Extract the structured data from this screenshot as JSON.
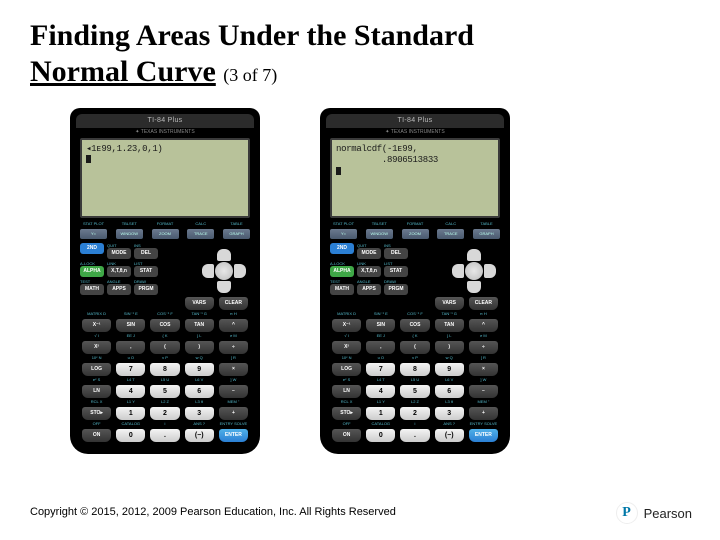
{
  "title_line1": "Finding Areas Under the Standard",
  "title_line2": "Normal Curve",
  "title_sub": "(3 of 7)",
  "calc_model": "TI-84 Plus",
  "calc_brand": "TEXAS INSTRUMENTS",
  "screen_left": "◂1ᴇ99,1.23,0,1)",
  "screen_right_l1": "normalcdf(-1ᴇ99,",
  "screen_right_l2": "         .8906513833",
  "fkeys": [
    "Y=",
    "WINDOW",
    "ZOOM",
    "TRACE",
    "GRAPH"
  ],
  "flabels": [
    "STAT PLOT",
    "TBLSET",
    "FORMAT",
    "CALC",
    "TABLE"
  ],
  "leftgrid": [
    {
      "t": "2ND",
      "c": "b2nd"
    },
    {
      "t": "MODE",
      "c": "bgray"
    },
    {
      "t": "DEL",
      "c": "bgray"
    },
    {
      "t": "ALPHA",
      "c": "balpha"
    },
    {
      "t": "X,T,θ,n",
      "c": "bgray"
    },
    {
      "t": "STAT",
      "c": "bgray"
    },
    {
      "t": "MATH",
      "c": "bgray"
    },
    {
      "t": "APPS",
      "c": "bgray"
    },
    {
      "t": "PRGM",
      "c": "bgray"
    }
  ],
  "row_labels": [
    [
      "TEST A",
      "ANGLE B",
      "DRAW C",
      "DISTR",
      ""
    ],
    [
      "MATRIX D",
      "SIN⁻¹ E",
      "COS⁻¹ F",
      "TAN⁻¹ G",
      "π H"
    ]
  ],
  "rows": [
    [
      {
        "t": "X⁻¹",
        "c": "kb"
      },
      {
        "t": "SIN",
        "c": "kb"
      },
      {
        "t": "COS",
        "c": "kb"
      },
      {
        "t": "TAN",
        "c": "kb"
      },
      {
        "t": "^",
        "c": "kb"
      }
    ],
    [
      {
        "t": "X²",
        "c": "kb"
      },
      {
        "t": ",",
        "c": "kb"
      },
      {
        "t": "(",
        "c": "kb"
      },
      {
        "t": ")",
        "c": "kb"
      },
      {
        "t": "÷",
        "c": "kb"
      }
    ],
    [
      {
        "t": "LOG",
        "c": "kb"
      },
      {
        "t": "7",
        "c": "kw"
      },
      {
        "t": "8",
        "c": "kw"
      },
      {
        "t": "9",
        "c": "kw"
      },
      {
        "t": "×",
        "c": "kb"
      }
    ],
    [
      {
        "t": "LN",
        "c": "kb"
      },
      {
        "t": "4",
        "c": "kw"
      },
      {
        "t": "5",
        "c": "kw"
      },
      {
        "t": "6",
        "c": "kw"
      },
      {
        "t": "−",
        "c": "kb"
      }
    ],
    [
      {
        "t": "STO▸",
        "c": "kb"
      },
      {
        "t": "1",
        "c": "kw"
      },
      {
        "t": "2",
        "c": "kw"
      },
      {
        "t": "3",
        "c": "kw"
      },
      {
        "t": "+",
        "c": "kb"
      }
    ],
    [
      {
        "t": "ON",
        "c": "kb"
      },
      {
        "t": "0",
        "c": "kw"
      },
      {
        "t": ".",
        "c": "kw"
      },
      {
        "t": "(−)",
        "c": "kw"
      },
      {
        "t": "ENTER",
        "c": "ke"
      }
    ]
  ],
  "num_labels": [
    [
      "√ I",
      "EE J",
      "{ K",
      "} L",
      "e M"
    ],
    [
      "10ˣ N",
      "u O",
      "v P",
      "w Q",
      "[ R"
    ],
    [
      "eˣ S",
      "L4 T",
      "L5 U",
      "L6 V",
      "] W"
    ],
    [
      "RCL X",
      "L1 Y",
      "L2 Z",
      "L3 θ",
      "MEM \""
    ],
    [
      "OFF",
      "CATALOG",
      "i",
      "ANS ?",
      "ENTRY SOLVE"
    ]
  ],
  "extra_right": [
    {
      "t": "VARS",
      "c": "bgray"
    },
    {
      "t": "CLEAR",
      "c": "bgray"
    }
  ],
  "copyright": "Copyright © 2015, 2012, 2009 Pearson Education, Inc. All Rights Reserved",
  "pearson": "Pearson"
}
